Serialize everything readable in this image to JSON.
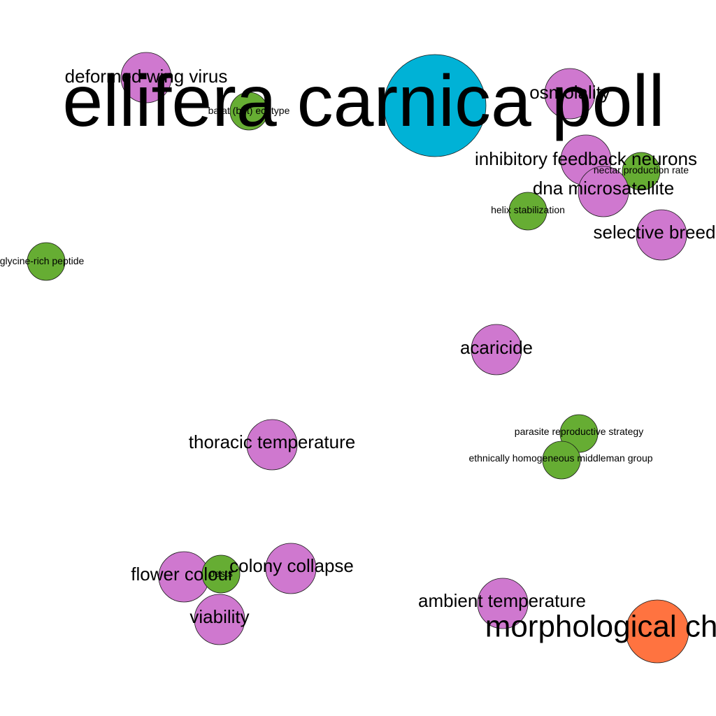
{
  "colors": {
    "background": "#ffffff",
    "concept": "#cf78cf",
    "minor": "#66ad33",
    "major": "#00b2d6",
    "accent": "#ff7340",
    "outline": "#1a1a1a"
  },
  "nodes": [
    {
      "id": "apis-mellifera-carnica-pollen",
      "label": "ellifera carnica poll",
      "type": "major"
    },
    {
      "id": "deformed-wing-virus",
      "label": "deformed wing virus",
      "type": "concept"
    },
    {
      "id": "bat-ecotype",
      "label": "batat (bet) ecotype",
      "type": "minor"
    },
    {
      "id": "osmolality",
      "label": "osmolality",
      "type": "concept"
    },
    {
      "id": "inhibitory-feedback-neurons",
      "label": "inhibitory feedback neurons",
      "type": "concept"
    },
    {
      "id": "nectar-production-rate",
      "label": "nectar production rate",
      "type": "minor"
    },
    {
      "id": "dna-microsatellite",
      "label": "dna microsatellite",
      "type": "concept"
    },
    {
      "id": "helix-stabilization",
      "label": "helix stabilization",
      "type": "minor"
    },
    {
      "id": "selective-breeding",
      "label": "selective breed",
      "type": "concept"
    },
    {
      "id": "glycine-rich-peptide",
      "label": "glycine-rich peptide",
      "type": "minor"
    },
    {
      "id": "acaricide",
      "label": "acaricide",
      "type": "concept"
    },
    {
      "id": "parasite-reproductive-strategy",
      "label": "parasite reproductive strategy",
      "type": "minor"
    },
    {
      "id": "ethnically-homogeneous-middleman-group",
      "label": "ethnically homogeneous middleman group",
      "type": "minor"
    },
    {
      "id": "thoracic-temperature",
      "label": "thoracic temperature",
      "type": "concept"
    },
    {
      "id": "flower-colour",
      "label": "flower colour",
      "type": "concept"
    },
    {
      "id": "pests",
      "label": "pests",
      "type": "minor"
    },
    {
      "id": "colony-collapse",
      "label": "colony collapse",
      "type": "concept"
    },
    {
      "id": "viability",
      "label": "viability",
      "type": "concept"
    },
    {
      "id": "ambient-temperature",
      "label": "ambient temperature",
      "type": "concept"
    },
    {
      "id": "morphological-change",
      "label": "morphological ch",
      "type": "accent"
    }
  ]
}
